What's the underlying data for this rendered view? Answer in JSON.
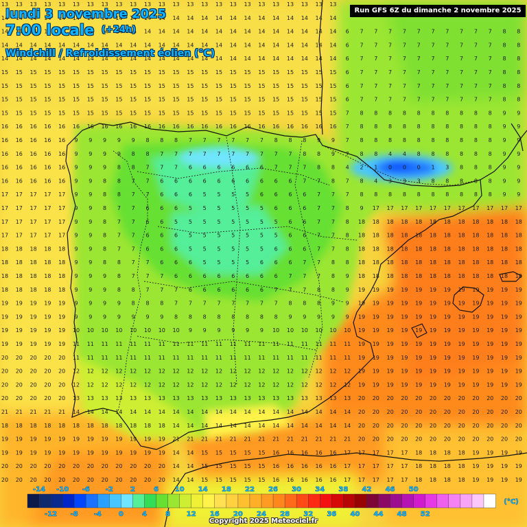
{
  "header": {
    "date": "lundi 3 novembre 2025",
    "time": "7:00 locale",
    "offset": "(+24h)",
    "variable": "Windchill / Refroidissement éolien (°C)",
    "run": "Run GFS 6Z du dimanche 2 novembre 2025"
  },
  "legend": {
    "unit": "(°C)",
    "top_labels": [
      "-14",
      "-10",
      "-6",
      "-2",
      "2",
      "6",
      "10",
      "14",
      "18",
      "22",
      "26",
      "30",
      "34",
      "38",
      "42",
      "46",
      "50"
    ],
    "bottom_labels": [
      "-12",
      "-8",
      "-4",
      "0",
      "4",
      "8",
      "12",
      "16",
      "20",
      "24",
      "28",
      "32",
      "36",
      "40",
      "44",
      "48",
      "52"
    ],
    "colors": [
      "#0a1a4a",
      "#102a6e",
      "#0b2a8f",
      "#0026c8",
      "#0046ff",
      "#1a72ff",
      "#2aa0ff",
      "#48c6ff",
      "#6fe5ff",
      "#55ee99",
      "#33dd55",
      "#66e033",
      "#9be630",
      "#cdee33",
      "#f0f034",
      "#fff24a",
      "#ffe050",
      "#ffd040",
      "#ffc030",
      "#ffae28",
      "#ff9a22",
      "#ff861c",
      "#ff6a1a",
      "#ff4a18",
      "#ff2a14",
      "#f41010",
      "#d60808",
      "#b80606",
      "#980404",
      "#7e0636",
      "#8a0a66",
      "#9c0c8e",
      "#b414b4",
      "#d01ccd",
      "#e63ae4",
      "#f060ee",
      "#f582f2",
      "#f8a4f6",
      "#fcc8fa",
      "#ffffff"
    ]
  },
  "map": {
    "region": "Iberian Peninsula"
  },
  "copyright": "Copyright 2025 Meteociel.fr"
}
